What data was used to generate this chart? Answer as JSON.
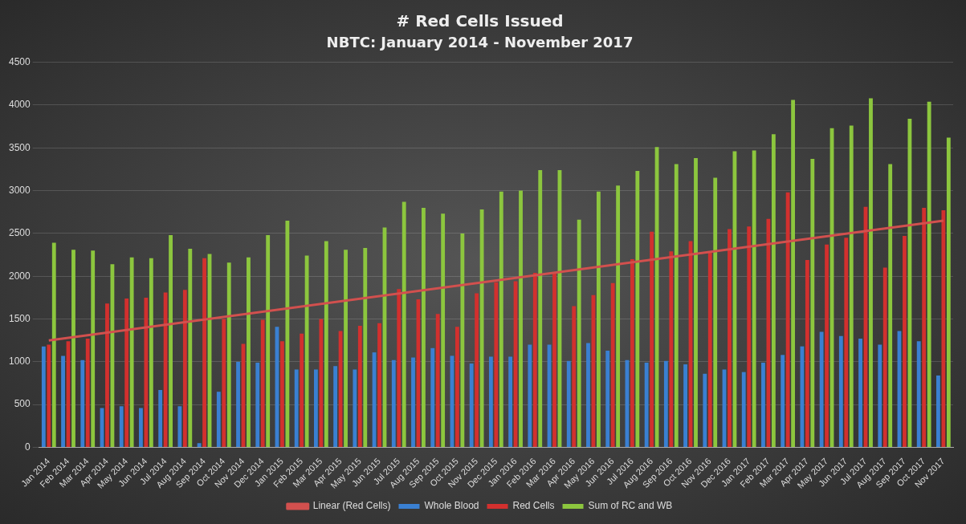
{
  "chart_data": {
    "type": "bar",
    "title": "# Red Cells Issued",
    "subtitle": "NBTC: January 2014 - November 2017",
    "categories": [
      "Jan 2014",
      "Feb 2014",
      "Mar 2014",
      "Apr 2014",
      "May 2014",
      "Jun 2014",
      "Jul 2014",
      "Aug 2014",
      "Sep 2014",
      "Oct 2014",
      "Nov 2014",
      "Dec 2014",
      "Jan 2015",
      "Feb 2015",
      "Mar 2015",
      "Apr 2015",
      "May 2015",
      "Jun 2015",
      "Jul 2015",
      "Aug 2015",
      "Sep 2015",
      "Oct 2015",
      "Nov 2015",
      "Dec 2015",
      "Jan 2016",
      "Feb 2016",
      "Mar 2016",
      "Apr 2016",
      "May 2016",
      "Jun 2016",
      "Jul 2016",
      "Aug 2016",
      "Sep 2016",
      "Oct 2016",
      "Nov 2016",
      "Dec 2016",
      "Jan 2017",
      "Feb 2017",
      "Mar 2017",
      "Apr 2017",
      "May 2017",
      "Jun 2017",
      "Jul 2017",
      "Aug 2017",
      "Sep 2017",
      "Oct 2017",
      "Nov 2017"
    ],
    "series": [
      {
        "name": "Whole Blood",
        "color": "#3a80d2",
        "values": [
          1180,
          1070,
          1020,
          460,
          480,
          460,
          670,
          480,
          50,
          650,
          1000,
          990,
          1410,
          910,
          910,
          950,
          910,
          1110,
          1020,
          1050,
          1160,
          1070,
          980,
          1060,
          1060,
          1200,
          1200,
          1010,
          1220,
          1130,
          1020,
          990,
          1010,
          970,
          860,
          910,
          880,
          990,
          1080,
          1180,
          1350,
          1300,
          1270,
          1200,
          1360,
          1240,
          840
        ]
      },
      {
        "name": "Red Cells",
        "color": "#d2302e",
        "values": [
          1200,
          1240,
          1270,
          1680,
          1740,
          1750,
          1810,
          1840,
          2210,
          1500,
          1210,
          1490,
          1240,
          1330,
          1500,
          1360,
          1420,
          1450,
          1850,
          1730,
          1560,
          1410,
          1800,
          1930,
          1940,
          2040,
          2030,
          1650,
          1780,
          1920,
          2200,
          2520,
          2290,
          2410,
          2290,
          2550,
          2580,
          2670,
          2980,
          2190,
          2370,
          2450,
          2810,
          2100,
          2470,
          2800,
          2770
        ]
      },
      {
        "name": "Sum of RC and WB",
        "color": "#8cc63e",
        "values": [
          2390,
          2310,
          2300,
          2140,
          2220,
          2210,
          2480,
          2320,
          2260,
          2160,
          2220,
          2480,
          2650,
          2240,
          2410,
          2310,
          2330,
          2570,
          2870,
          2800,
          2730,
          2500,
          2780,
          2990,
          3000,
          3240,
          3240,
          2660,
          2990,
          3060,
          3230,
          3510,
          3310,
          3380,
          3150,
          3460,
          3470,
          3660,
          4060,
          3370,
          3730,
          3760,
          4080,
          3310,
          3840,
          4040,
          3620
        ]
      },
      {
        "name": "Linear (Red Cells)",
        "type": "line",
        "color": "#d2504e",
        "x": [
          "Jan 2014",
          "Nov 2017"
        ],
        "values": [
          1250,
          2650
        ]
      }
    ],
    "ylim": [
      0,
      4500
    ],
    "yticks": [
      0,
      500,
      1000,
      1500,
      2000,
      2500,
      3000,
      3500,
      4000,
      4500
    ],
    "grid": "y",
    "legend": "bottom",
    "marker": "none"
  }
}
